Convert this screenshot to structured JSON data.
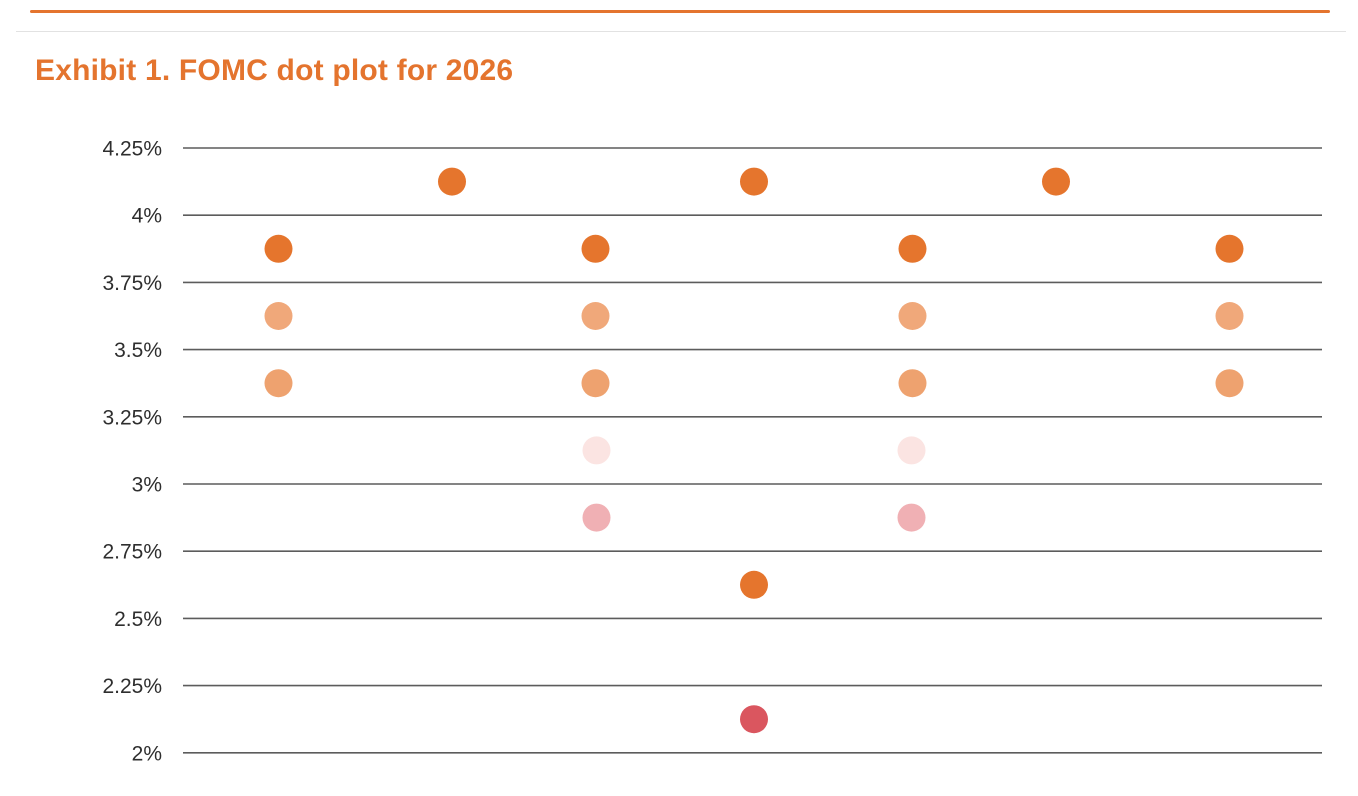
{
  "page": {
    "title": "Exhibit 1. FOMC dot plot for 2026"
  },
  "colors": {
    "accent_orange": "#e4742e",
    "grid_line": "#5c5c5c",
    "tick_label": "#2e2e2e",
    "top_rule_orange": "#e4742e",
    "top_rule_gray": "#e2e2e2"
  },
  "chart_data": {
    "type": "scatter",
    "title": "Exhibit 1. FOMC dot plot for 2026",
    "xlabel": "",
    "ylabel": "",
    "ylim": [
      2.0,
      4.25
    ],
    "grid": true,
    "legend": "none",
    "y_gridlines": [
      4.25,
      4.0,
      3.75,
      3.5,
      3.25,
      3.0,
      2.75,
      2.5,
      2.25,
      2.0
    ],
    "y_tick_labels": [
      "4.25%",
      "4%",
      "3.75%",
      "3.5%",
      "3.25%",
      "3%",
      "2.75%",
      "2.5%",
      "2.25%",
      "2%"
    ],
    "dot_rows": [
      {
        "rate": 4.125,
        "count": 3,
        "color": "#e5752d"
      },
      {
        "rate": 3.875,
        "count": 4,
        "color": "#e5752d"
      },
      {
        "rate": 3.625,
        "count": 4,
        "color": "#f0a87a"
      },
      {
        "rate": 3.375,
        "count": 4,
        "color": "#eea26f"
      },
      {
        "rate": 3.125,
        "count": 2,
        "color": "#fbe4e2"
      },
      {
        "rate": 2.875,
        "count": 2,
        "color": "#f0b0b4"
      },
      {
        "rate": 2.625,
        "count": 1,
        "color": "#e5752d"
      },
      {
        "rate": 2.125,
        "count": 1,
        "color": "#da565f"
      }
    ]
  }
}
